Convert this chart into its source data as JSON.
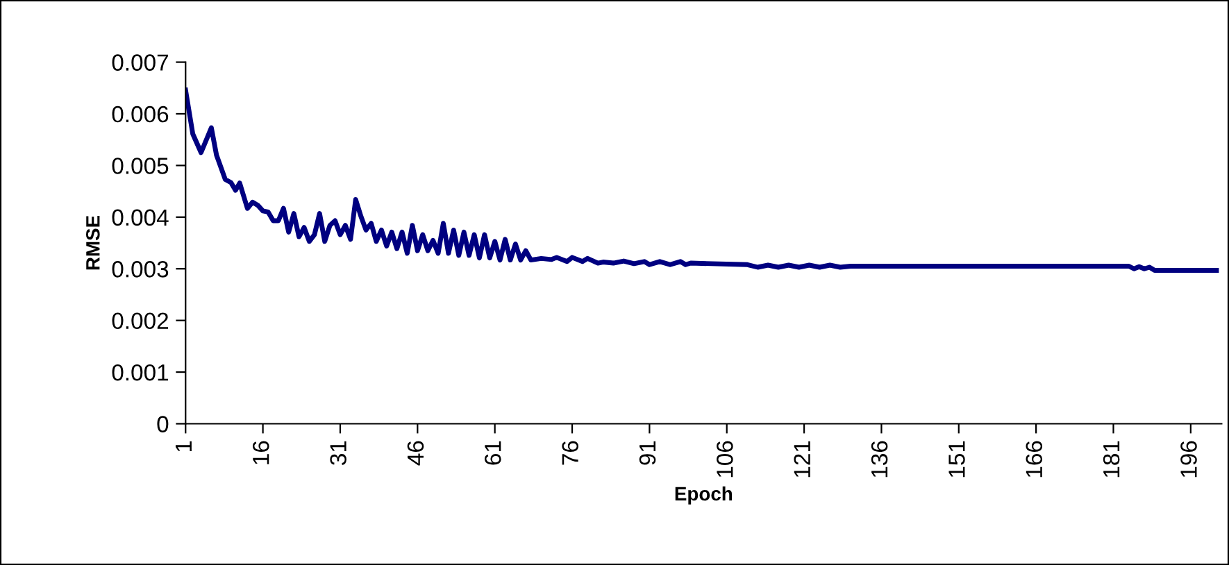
{
  "chart_data": {
    "type": "line",
    "xlabel": "Epoch",
    "ylabel": "RMSE",
    "x": [
      1,
      2.4,
      4,
      6,
      7,
      8.7,
      9.8,
      10.7,
      11.5,
      13,
      14,
      15,
      16,
      17,
      18,
      19,
      20,
      21,
      22,
      23,
      24,
      25,
      26,
      27,
      28,
      29,
      30,
      31,
      32,
      33,
      34,
      35,
      36,
      37,
      38,
      39,
      40,
      41,
      42,
      43,
      44,
      45,
      46,
      47,
      48,
      49,
      50,
      51,
      52,
      53,
      54,
      55,
      56,
      57,
      58,
      59,
      60,
      61,
      62,
      63,
      64,
      65,
      66,
      67,
      68,
      70,
      72,
      73,
      75,
      76,
      78,
      79,
      81,
      82,
      84,
      86,
      88,
      90,
      91,
      93,
      95,
      97,
      98,
      99,
      110,
      112,
      114,
      116,
      118,
      120,
      122,
      124,
      126,
      128,
      130,
      184,
      185,
      186,
      187,
      188,
      189,
      201
    ],
    "series": [
      {
        "color": "#000080",
        "values": [
          0.00646,
          0.00561,
          0.00525,
          0.00573,
          0.0052,
          0.00473,
          0.00467,
          0.00452,
          0.00466,
          0.00417,
          0.00429,
          0.00423,
          0.00412,
          0.0041,
          0.00393,
          0.00393,
          0.00417,
          0.00371,
          0.00407,
          0.00362,
          0.0038,
          0.00353,
          0.00366,
          0.00407,
          0.00353,
          0.00384,
          0.00393,
          0.00366,
          0.00384,
          0.00357,
          0.00434,
          0.00402,
          0.00375,
          0.00388,
          0.00353,
          0.00375,
          0.00344,
          0.00371,
          0.00339,
          0.00371,
          0.0033,
          0.00384,
          0.00335,
          0.00366,
          0.00335,
          0.00355,
          0.0033,
          0.00388,
          0.0033,
          0.00375,
          0.00326,
          0.00371,
          0.00326,
          0.00366,
          0.00321,
          0.00366,
          0.00321,
          0.00353,
          0.00317,
          0.00357,
          0.00317,
          0.00348,
          0.00317,
          0.00335,
          0.00317,
          0.0032,
          0.00318,
          0.00322,
          0.00314,
          0.00322,
          0.00314,
          0.0032,
          0.00311,
          0.00313,
          0.00311,
          0.00315,
          0.0031,
          0.00314,
          0.00308,
          0.00314,
          0.00308,
          0.00314,
          0.00308,
          0.00311,
          0.00308,
          0.00303,
          0.00307,
          0.00303,
          0.00307,
          0.00303,
          0.00307,
          0.00303,
          0.00307,
          0.00303,
          0.00305,
          0.00305,
          0.003,
          0.00304,
          0.003,
          0.00303,
          0.00297,
          0.00297
        ]
      }
    ],
    "xlim": [
      1,
      202
    ],
    "xticks": [
      1,
      16,
      31,
      46,
      61,
      76,
      91,
      106,
      121,
      136,
      151,
      166,
      181,
      196
    ],
    "ylim": [
      0,
      0.007
    ],
    "yticks": [
      0,
      0.001,
      0.002,
      0.003,
      0.004,
      0.005,
      0.006,
      0.007
    ],
    "grid": false,
    "legend": false,
    "marker": "none",
    "line_style": "solid"
  }
}
